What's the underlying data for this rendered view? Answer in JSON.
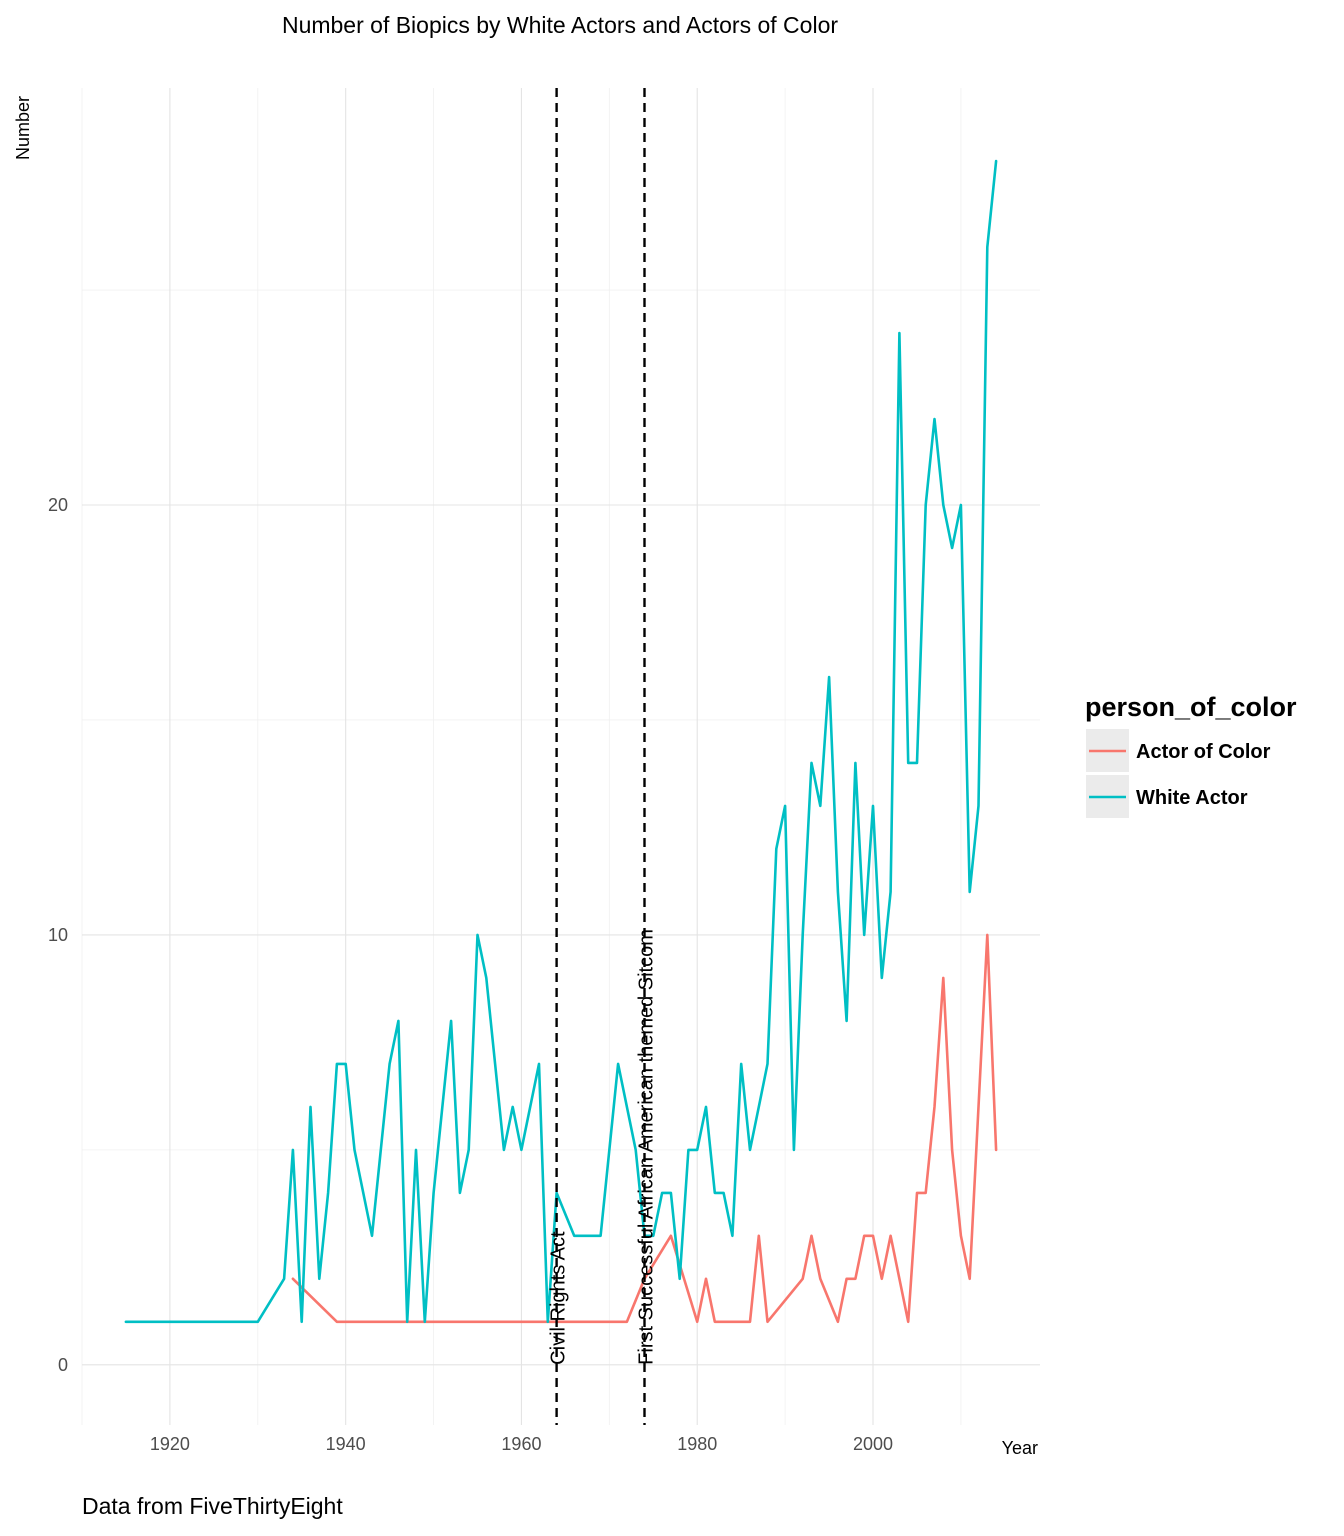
{
  "chart_data": {
    "type": "line",
    "title": "Number of Biopics by White Actors and Actors of Color",
    "xlabel": "Year",
    "ylabel": "Number",
    "caption": "Data from FiveThirtyEight",
    "xlim": [
      1910,
      2019
    ],
    "ylim": [
      -1.4,
      29.7
    ],
    "x_ticks": [
      1920,
      1940,
      1960,
      1980,
      2000
    ],
    "y_ticks": [
      0,
      10,
      20
    ],
    "grid": true,
    "legend": {
      "title": "person_of_color",
      "position": "right"
    },
    "annotations": [
      {
        "x": 1964,
        "label": "Civil Rights Act",
        "style": "dashed vertical line"
      },
      {
        "x": 1974,
        "label": "First Successful African American  themed Sitcom",
        "style": "dashed vertical line"
      }
    ],
    "series": [
      {
        "name": "Actor of Color",
        "color": "#F8766D",
        "x": [
          1934,
          1939,
          1964,
          1972,
          1974,
          1977,
          1980,
          1981,
          1982,
          1986,
          1987,
          1988,
          1992,
          1993,
          1994,
          1996,
          1997,
          1998,
          1999,
          2000,
          2001,
          2002,
          2004,
          2005,
          2006,
          2007,
          2008,
          2009,
          2010,
          2011,
          2013,
          2014
        ],
        "y": [
          2,
          1,
          1,
          1,
          2,
          3,
          1,
          2,
          1,
          1,
          3,
          1,
          2,
          3,
          2,
          1,
          2,
          2,
          3,
          3,
          2,
          3,
          1,
          4,
          4,
          6,
          9,
          5,
          3,
          2,
          10,
          5
        ]
      },
      {
        "name": "White Actor",
        "color": "#00BFC4",
        "x": [
          1915,
          1930,
          1933,
          1934,
          1935,
          1936,
          1937,
          1938,
          1939,
          1940,
          1941,
          1943,
          1944,
          1945,
          1946,
          1947,
          1948,
          1949,
          1950,
          1952,
          1953,
          1954,
          1955,
          1956,
          1957,
          1958,
          1959,
          1960,
          1961,
          1962,
          1963,
          1964,
          1966,
          1968,
          1969,
          1971,
          1973,
          1974,
          1975,
          1976,
          1977,
          1978,
          1979,
          1980,
          1981,
          1982,
          1983,
          1984,
          1985,
          1986,
          1987,
          1988,
          1989,
          1990,
          1991,
          1992,
          1993,
          1994,
          1995,
          1996,
          1997,
          1998,
          1999,
          2000,
          2001,
          2002,
          2003,
          2004,
          2005,
          2006,
          2007,
          2008,
          2009,
          2010,
          2011,
          2012,
          2013,
          2014
        ],
        "y": [
          1,
          1,
          2,
          5,
          1,
          6,
          2,
          4,
          7,
          7,
          5,
          3,
          5,
          7,
          8,
          1,
          5,
          1,
          4,
          8,
          4,
          5,
          10,
          9,
          7,
          5,
          6,
          5,
          6,
          7,
          1,
          4,
          3,
          3,
          3,
          7,
          5,
          3,
          3,
          4,
          4,
          2,
          5,
          5,
          6,
          4,
          4,
          3,
          7,
          5,
          6,
          7,
          12,
          13,
          5,
          10,
          14,
          13,
          16,
          11,
          8,
          14,
          10,
          13,
          9,
          11,
          24,
          14,
          14,
          20,
          22,
          20,
          19,
          20,
          11,
          13,
          26,
          28
        ]
      }
    ]
  }
}
